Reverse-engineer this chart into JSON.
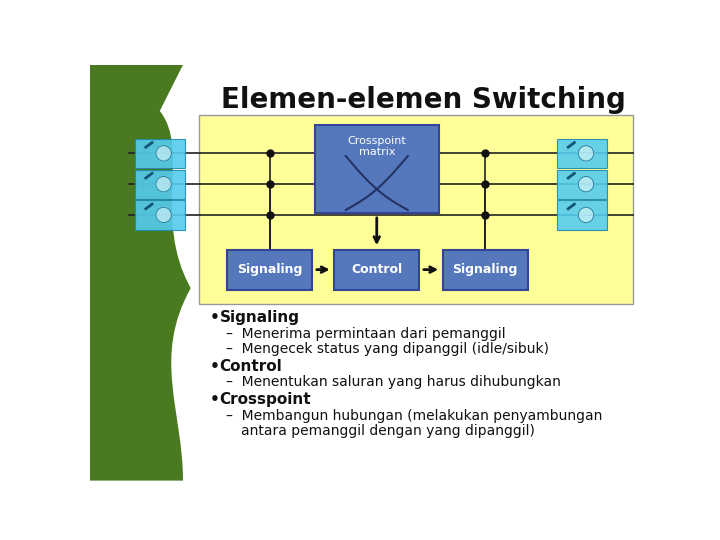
{
  "title": "Elemen-elemen Switching",
  "title_fontsize": 20,
  "title_color": "#111111",
  "bg_color": "#ffffff",
  "green_color": "#4a7a20",
  "yellow_box_color": "#ffff99",
  "blue_box_color": "#5577bb",
  "blue_box_edge": "#334499",
  "crosspoint_label": "Crosspoint\nmatrix",
  "signaling_label": "Signaling",
  "control_label": "Control",
  "line_color": "#222222",
  "dot_color": "#111111",
  "arrow_color": "#111111",
  "text_color": "#111111",
  "sub_text_color": "#333333"
}
